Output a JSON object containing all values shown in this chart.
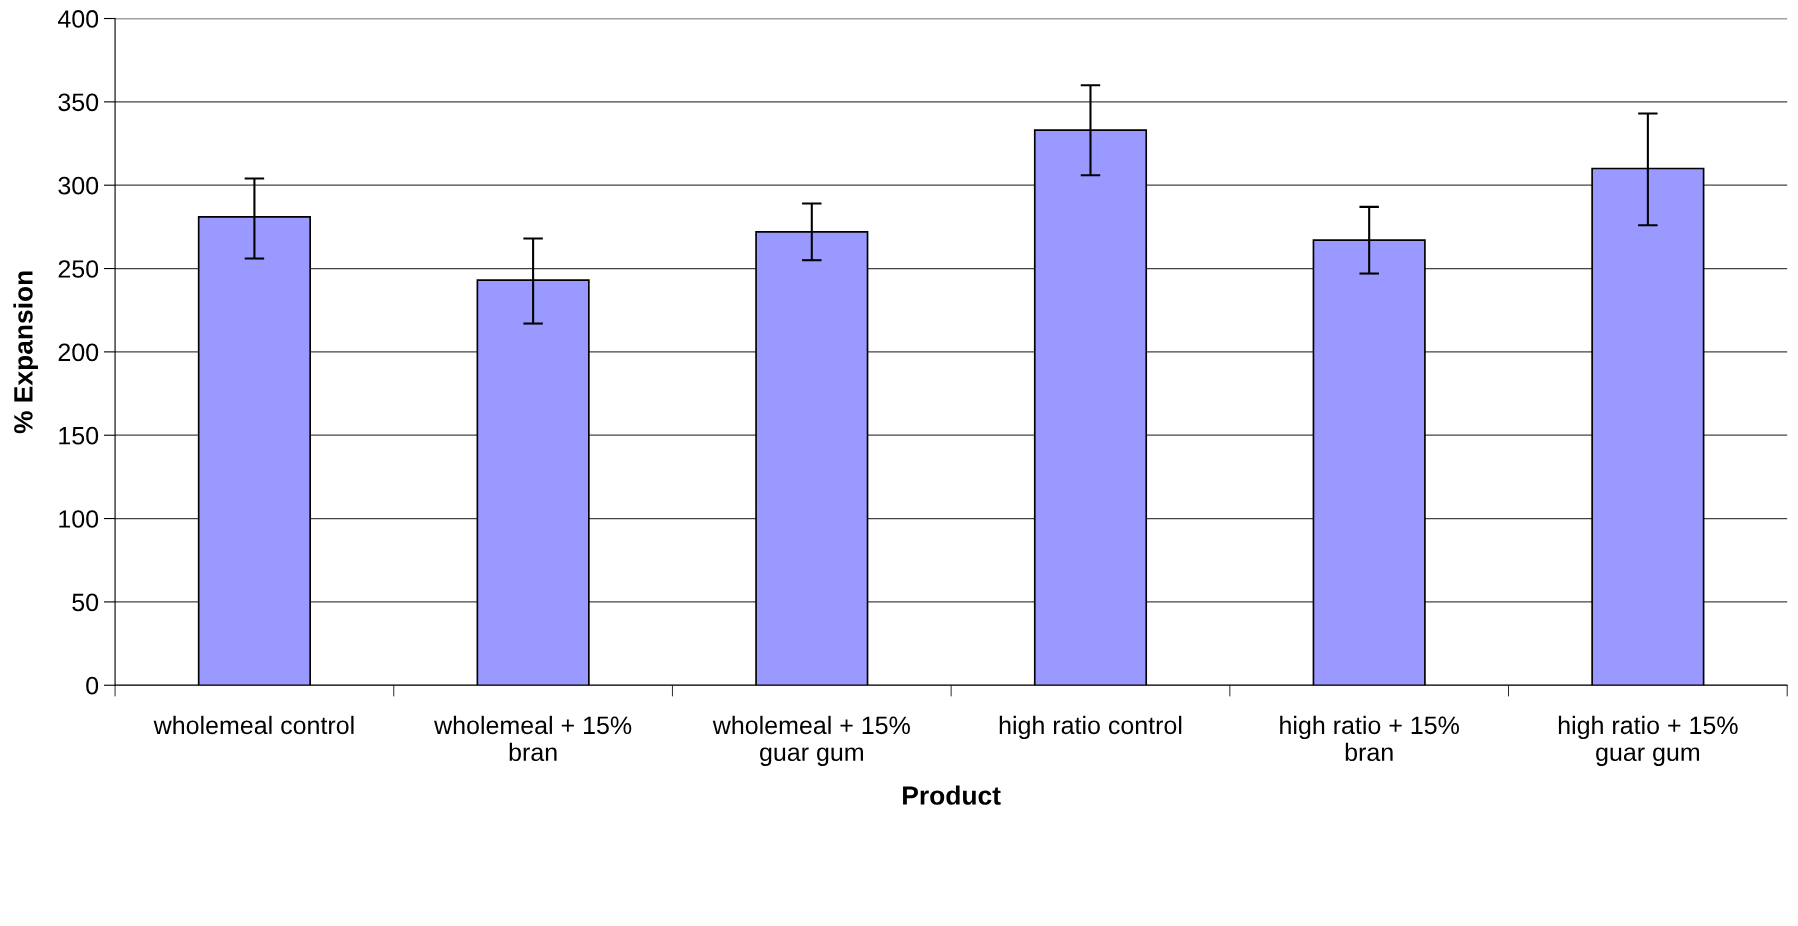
{
  "chart_data": {
    "type": "bar",
    "xlabel": "Product",
    "ylabel": "% Expansion",
    "categories": [
      "wholemeal control",
      "wholemeal + 15%\nbran",
      "wholemeal + 15%\nguar gum",
      "high ratio control",
      "high ratio + 15%\nbran",
      "high ratio + 15%\nguar gum"
    ],
    "values": [
      281,
      243,
      272,
      333,
      267,
      310
    ],
    "errors": [
      [
        256,
        304
      ],
      [
        217,
        268
      ],
      [
        255,
        289
      ],
      [
        306,
        360
      ],
      [
        247,
        287
      ],
      [
        276,
        343
      ]
    ],
    "color": "#9999ff",
    "ylim": [
      0,
      400
    ],
    "yticks": [
      0,
      50,
      100,
      150,
      200,
      250,
      300,
      350,
      400
    ],
    "grid": "y",
    "legend": false
  }
}
